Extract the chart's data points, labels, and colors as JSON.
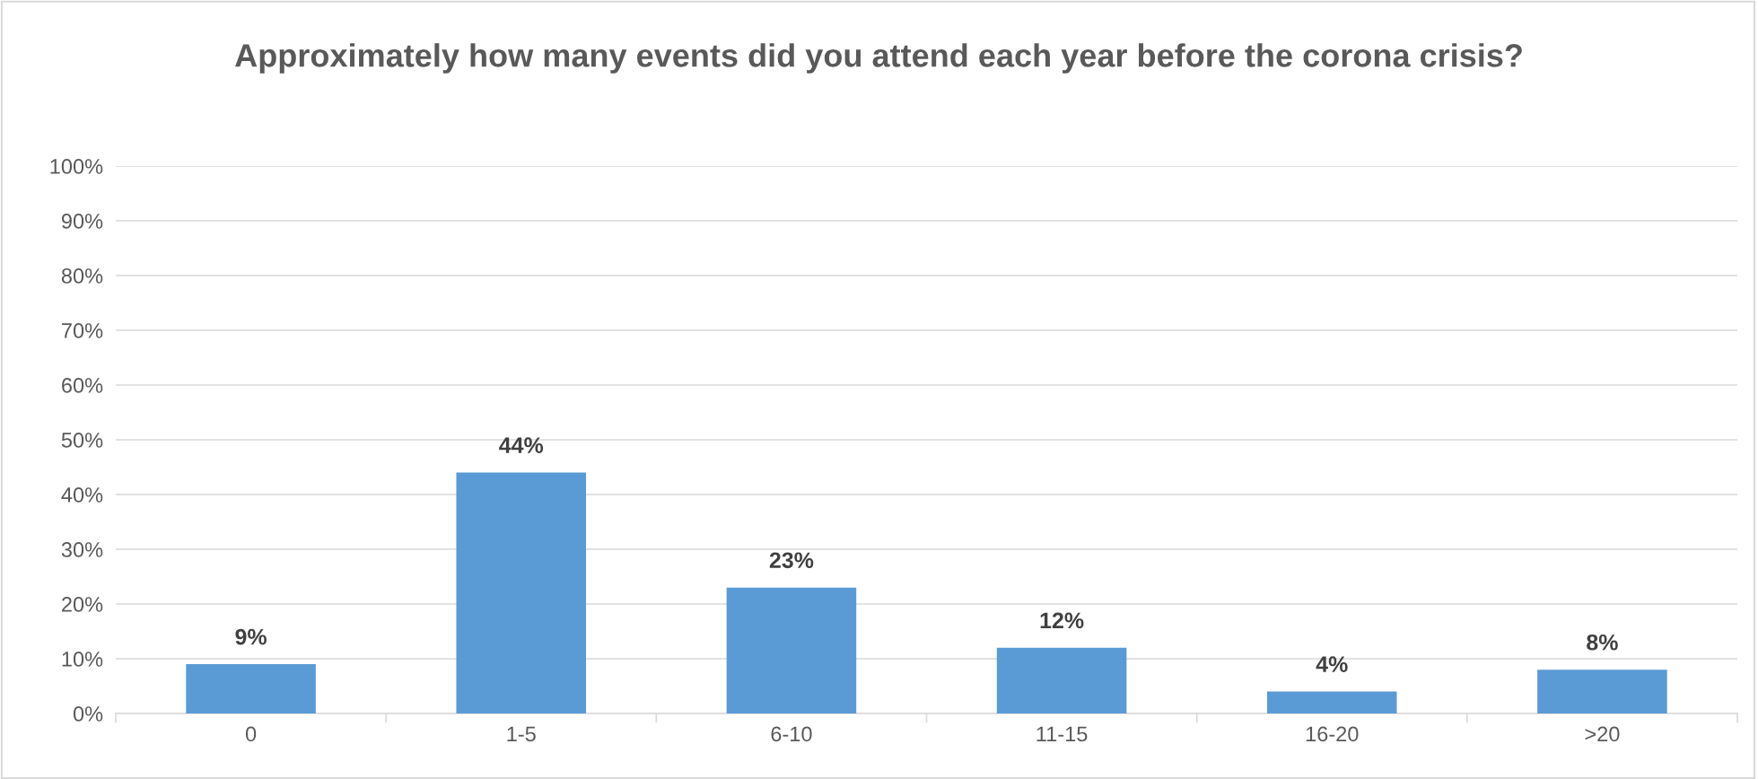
{
  "chart_data": {
    "type": "bar",
    "title": "Approximately how many events did you attend each year before the corona crisis?",
    "categories": [
      "0",
      "1-5",
      "6-10",
      "11-15",
      "16-20",
      ">20"
    ],
    "values": [
      9,
      44,
      23,
      12,
      4,
      8
    ],
    "value_labels": [
      "9%",
      "44%",
      "23%",
      "12%",
      "4%",
      "8%"
    ],
    "color": "#5b9bd5",
    "ylim": [
      0,
      100
    ],
    "yticks": [
      {
        "value": 0,
        "label": "0%"
      },
      {
        "value": 10,
        "label": "10%"
      },
      {
        "value": 20,
        "label": "20%"
      },
      {
        "value": 30,
        "label": "30%"
      },
      {
        "value": 40,
        "label": "40%"
      },
      {
        "value": 50,
        "label": "50%"
      },
      {
        "value": 60,
        "label": "60%"
      },
      {
        "value": 70,
        "label": "70%"
      },
      {
        "value": 80,
        "label": "80%"
      },
      {
        "value": 90,
        "label": "90%"
      },
      {
        "value": 100,
        "label": "100%"
      }
    ],
    "grid": "y",
    "legend": false
  }
}
